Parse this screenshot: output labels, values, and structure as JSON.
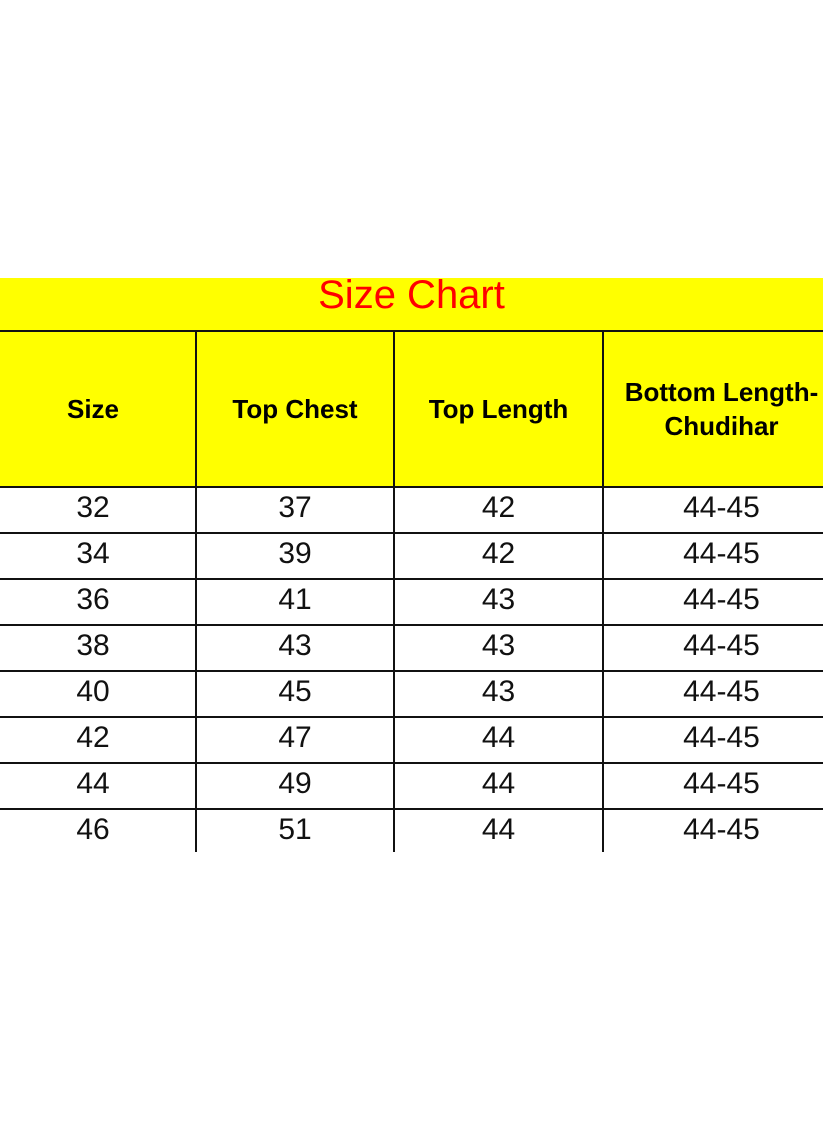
{
  "title": "Size Chart",
  "colors": {
    "header_background": "#ffff00",
    "title_text": "#ff0000",
    "grid": "#111111"
  },
  "columns": [
    "Size",
    "Top Chest",
    "Top Length",
    "Bottom Length-\nChudihar"
  ],
  "rows": [
    [
      "32",
      "37",
      "42",
      "44-45"
    ],
    [
      "34",
      "39",
      "42",
      "44-45"
    ],
    [
      "36",
      "41",
      "43",
      "44-45"
    ],
    [
      "38",
      "43",
      "43",
      "44-45"
    ],
    [
      "40",
      "45",
      "43",
      "44-45"
    ],
    [
      "42",
      "47",
      "44",
      "44-45"
    ],
    [
      "44",
      "49",
      "44",
      "44-45"
    ],
    [
      "46",
      "51",
      "44",
      "44-45"
    ]
  ]
}
